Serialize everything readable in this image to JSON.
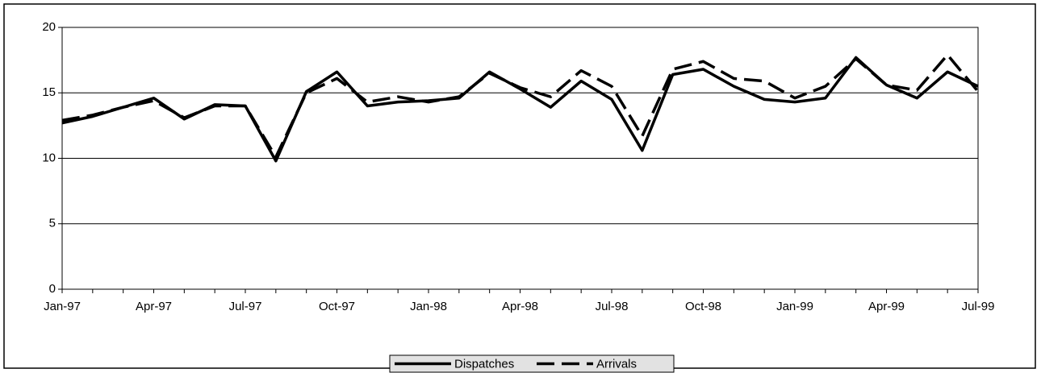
{
  "chart_data": {
    "type": "line",
    "categories": [
      "Jan-97",
      null,
      null,
      "Apr-97",
      null,
      null,
      "Jul-97",
      null,
      null,
      "Oct-97",
      null,
      null,
      "Jan-98",
      null,
      null,
      "Apr-98",
      null,
      null,
      "Jul-98",
      null,
      null,
      "Oct-98",
      null,
      null,
      "Jan-99",
      null,
      null,
      "Apr-99",
      null,
      null,
      "Jul-99"
    ],
    "series": [
      {
        "name": "Dispatches",
        "color": "#000000",
        "dash": "solid",
        "values": [
          12.7,
          13.2,
          13.9,
          14.6,
          13.0,
          14.1,
          14.0,
          9.8,
          15.1,
          16.6,
          14.0,
          14.3,
          14.4,
          14.6,
          16.6,
          15.3,
          13.9,
          15.9,
          14.5,
          10.6,
          16.4,
          16.8,
          15.5,
          14.5,
          14.3,
          14.6,
          17.7,
          15.6,
          14.6,
          16.6,
          15.5
        ]
      },
      {
        "name": "Arrivals",
        "color": "#000000",
        "dash": "dashed",
        "values": [
          12.9,
          13.3,
          13.9,
          14.4,
          13.1,
          14.0,
          14.0,
          10.1,
          15.0,
          16.1,
          14.3,
          14.7,
          14.3,
          14.7,
          16.5,
          15.4,
          14.7,
          16.7,
          15.5,
          11.7,
          16.8,
          17.4,
          16.1,
          15.9,
          14.6,
          15.5,
          17.6,
          15.6,
          15.2,
          17.9,
          15.1
        ]
      }
    ],
    "ylim": [
      0,
      20
    ],
    "yticks": [
      0,
      5,
      10,
      15,
      20
    ],
    "grid": true,
    "legend": "bottom"
  }
}
